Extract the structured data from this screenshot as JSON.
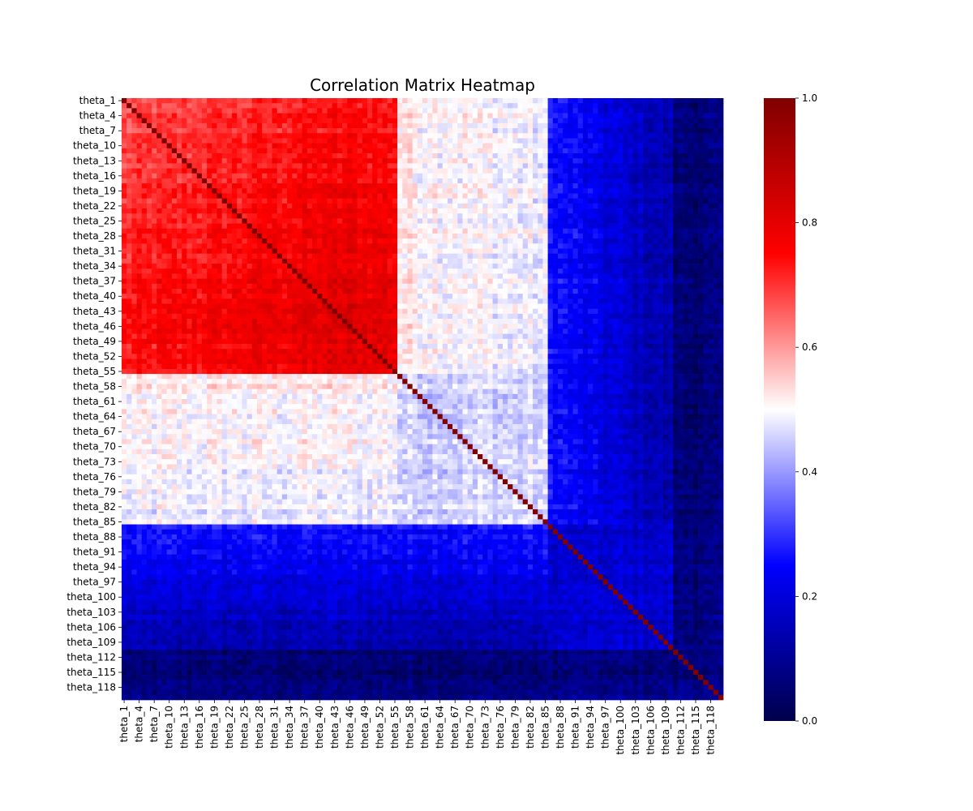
{
  "chart_data": {
    "type": "heatmap",
    "title": "Correlation Matrix Heatmap",
    "xlabel": "",
    "ylabel": "",
    "n": 120,
    "variable_prefix": "theta_",
    "tick_labels": [
      "theta_1",
      "theta_4",
      "theta_7",
      "theta_10",
      "theta_13",
      "theta_16",
      "theta_19",
      "theta_22",
      "theta_25",
      "theta_28",
      "theta_31",
      "theta_34",
      "theta_37",
      "theta_40",
      "theta_43",
      "theta_46",
      "theta_49",
      "theta_52",
      "theta_55",
      "theta_58",
      "theta_61",
      "theta_64",
      "theta_67",
      "theta_70",
      "theta_73",
      "theta_76",
      "theta_79",
      "theta_82",
      "theta_85",
      "theta_88",
      "theta_91",
      "theta_94",
      "theta_97",
      "theta_100",
      "theta_103",
      "theta_106",
      "theta_109",
      "theta_112",
      "theta_115",
      "theta_118"
    ],
    "tick_indices": [
      1,
      4,
      7,
      10,
      13,
      16,
      19,
      22,
      25,
      28,
      31,
      34,
      37,
      40,
      43,
      46,
      49,
      52,
      55,
      58,
      61,
      64,
      67,
      70,
      73,
      76,
      79,
      82,
      85,
      88,
      91,
      94,
      97,
      100,
      103,
      106,
      109,
      112,
      115,
      118
    ],
    "colormap": "seismic",
    "vmin": 0.0,
    "vmax": 1.0,
    "colorbar_ticks": [
      "0.0",
      "0.2",
      "0.4",
      "0.6",
      "0.8",
      "1.0"
    ],
    "diagonal_value": 1.0,
    "structure_description": "",
    "approx_block_values": {
      "theta_1-theta_55 block": 0.68,
      "theta_40-theta_50 core": 0.78,
      "theta_56-theta_85 with theta_1-theta_55": 0.5,
      "theta_86-theta_110 with theta_1-theta_85": 0.25,
      "theta_86-theta_120 with theta_86-theta_120": 0.1,
      "theta_111-theta_120 rows": 0.05
    }
  }
}
